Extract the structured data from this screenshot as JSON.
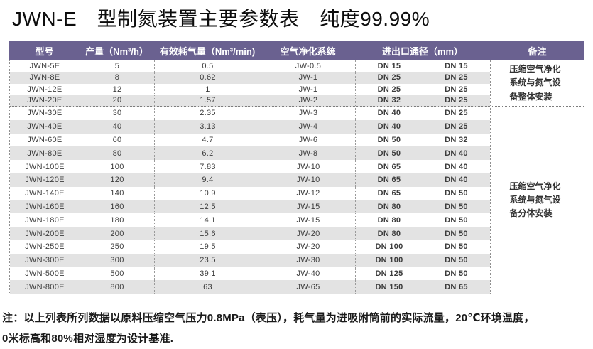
{
  "page": {
    "title": "JWN-E　型制氮装置主要参数表　纯度99.99%"
  },
  "colors": {
    "header_bg": "#6a6190",
    "header_text": "#ffffff",
    "row_stripe": "#e3e3e3",
    "dotted_border": "#8f8f8f"
  },
  "table": {
    "headers": {
      "model": "型号",
      "output": "产量（Nm³/h）",
      "consumption": "有效耗气量（Nm³/min)",
      "purification": "空气净化系统",
      "ports": "进出口通径（mm）",
      "remark": "备注"
    },
    "rows": [
      {
        "model": "JWN-5E",
        "output": "5",
        "consumption": "0.5",
        "purification": "JW-0.5",
        "inlet": "DN 15",
        "outlet": "DN 15"
      },
      {
        "model": "JWN-8E",
        "output": "8",
        "consumption": "0.62",
        "purification": "JW-1",
        "inlet": "DN 25",
        "outlet": "DN 25"
      },
      {
        "model": "JWN-12E",
        "output": "12",
        "consumption": "1",
        "purification": "JW-1",
        "inlet": "DN 25",
        "outlet": "DN 25"
      },
      {
        "model": "JWN-20E",
        "output": "20",
        "consumption": "1.57",
        "purification": "JW-2",
        "inlet": "DN 32",
        "outlet": "DN 25"
      },
      {
        "model": "JWN-30E",
        "output": "30",
        "consumption": "2.35",
        "purification": "JW-3",
        "inlet": "DN 40",
        "outlet": "DN 25"
      },
      {
        "model": "JWN-40E",
        "output": "40",
        "consumption": "3.13",
        "purification": "JW-4",
        "inlet": "DN 40",
        "outlet": "DN 25"
      },
      {
        "model": "JWN-60E",
        "output": "60",
        "consumption": "4.7",
        "purification": "JW-6",
        "inlet": "DN 50",
        "outlet": "DN 32"
      },
      {
        "model": "JWN-80E",
        "output": "80",
        "consumption": "6.2",
        "purification": "JW-8",
        "inlet": "DN 50",
        "outlet": "DN 40"
      },
      {
        "model": "JWN-100E",
        "output": "100",
        "consumption": "7.83",
        "purification": "JW-10",
        "inlet": "DN 65",
        "outlet": "DN 40"
      },
      {
        "model": "JWN-120E",
        "output": "120",
        "consumption": "9.4",
        "purification": "JW-10",
        "inlet": "DN 65",
        "outlet": "DN 40"
      },
      {
        "model": "JWN-140E",
        "output": "140",
        "consumption": "10.9",
        "purification": "JW-12",
        "inlet": "DN 65",
        "outlet": "DN 50"
      },
      {
        "model": "JWN-160E",
        "output": "160",
        "consumption": "12.5",
        "purification": "JW-15",
        "inlet": "DN 80",
        "outlet": "DN 50"
      },
      {
        "model": "JWN-180E",
        "output": "180",
        "consumption": "14.1",
        "purification": "JW-15",
        "inlet": "DN 80",
        "outlet": "DN 50"
      },
      {
        "model": "JWN-200E",
        "output": "200",
        "consumption": "15.6",
        "purification": "JW-20",
        "inlet": "DN 80",
        "outlet": "DN 50"
      },
      {
        "model": "JWN-250E",
        "output": "250",
        "consumption": "19.5",
        "purification": "JW-20",
        "inlet": "DN 100",
        "outlet": "DN 50"
      },
      {
        "model": "JWN-300E",
        "output": "300",
        "consumption": "23.5",
        "purification": "JW-30",
        "inlet": "DN 100",
        "outlet": "DN 50"
      },
      {
        "model": "JWN-500E",
        "output": "500",
        "consumption": "39.1",
        "purification": "JW-40",
        "inlet": "DN 125",
        "outlet": "DN 50"
      },
      {
        "model": "JWN-800E",
        "output": "800",
        "consumption": "63",
        "purification": "JW-65",
        "inlet": "DN 150",
        "outlet": "DN 65"
      }
    ],
    "remarks": [
      {
        "text": "压缩空气净化系统与氮气设备整体安装",
        "span_rows": 4
      },
      {
        "text": "压缩空气净化系统与氮气设备分体安装",
        "span_rows": 14
      }
    ]
  },
  "footer": {
    "line1": "注：以上列表所列数据以原料压缩空气压力0.8MPa（表压），耗气量为进吸附筒前的实际流量，20℃环境温度，",
    "line2": "0米标高和80%相对湿度为设计基准."
  }
}
